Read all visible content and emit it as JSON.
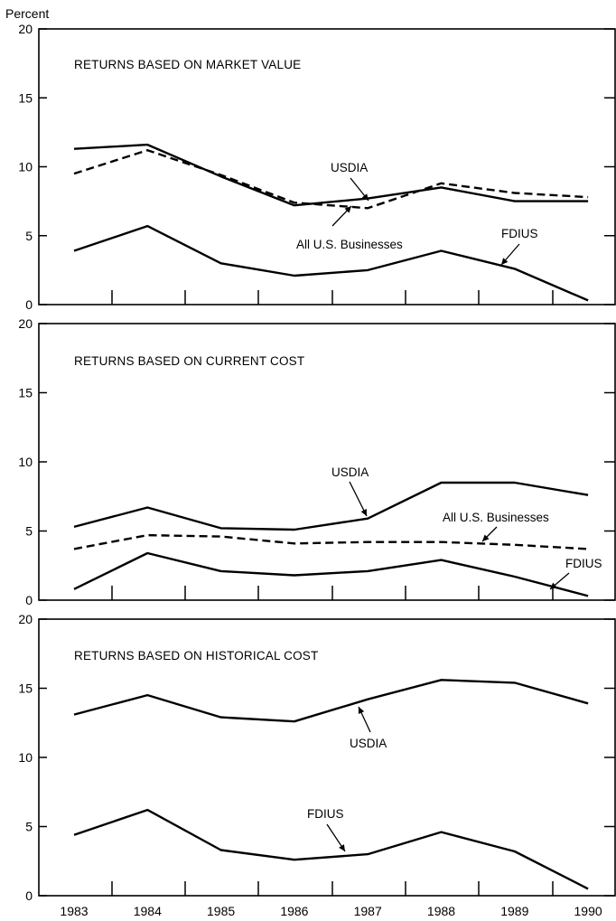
{
  "y_unit_label": "Percent",
  "chart_data": [
    {
      "type": "line",
      "title": "RETURNS BASED ON MARKET VALUE",
      "categories": [
        "1983",
        "1984",
        "1985",
        "1986",
        "1987",
        "1988",
        "1989",
        "1990"
      ],
      "ylim": [
        0,
        20
      ],
      "yticks": [
        0,
        5,
        10,
        15,
        20
      ],
      "grid": false,
      "series": [
        {
          "name": "USDIA",
          "style": "solid",
          "values": [
            11.3,
            11.6,
            9.3,
            7.2,
            7.7,
            8.5,
            7.5,
            7.5
          ]
        },
        {
          "name": "All U.S. Businesses",
          "style": "dashed",
          "values": [
            9.5,
            11.2,
            9.4,
            7.4,
            7.0,
            8.8,
            8.1,
            7.8
          ]
        },
        {
          "name": "FDIUS",
          "style": "solid",
          "values": [
            3.9,
            5.7,
            3.0,
            2.1,
            2.5,
            3.9,
            2.6,
            0.3
          ]
        }
      ]
    },
    {
      "type": "line",
      "title": "RETURNS BASED ON CURRENT COST",
      "categories": [
        "1983",
        "1984",
        "1985",
        "1986",
        "1987",
        "1988",
        "1989",
        "1990"
      ],
      "ylim": [
        0,
        20
      ],
      "yticks": [
        0,
        5,
        10,
        15,
        20
      ],
      "grid": false,
      "series": [
        {
          "name": "USDIA",
          "style": "solid",
          "values": [
            5.3,
            6.7,
            5.2,
            5.1,
            5.9,
            8.5,
            8.5,
            7.6
          ]
        },
        {
          "name": "All U.S. Businesses",
          "style": "dashed",
          "values": [
            3.7,
            4.7,
            4.6,
            4.1,
            4.2,
            4.2,
            4.0,
            3.7
          ]
        },
        {
          "name": "FDIUS",
          "style": "solid",
          "values": [
            0.8,
            3.4,
            2.1,
            1.8,
            2.1,
            2.9,
            1.7,
            0.3
          ]
        }
      ]
    },
    {
      "type": "line",
      "title": "RETURNS BASED ON HISTORICAL COST",
      "categories": [
        "1983",
        "1984",
        "1985",
        "1986",
        "1987",
        "1988",
        "1989",
        "1990"
      ],
      "ylim": [
        0,
        20
      ],
      "yticks": [
        0,
        5,
        10,
        15,
        20
      ],
      "grid": false,
      "series": [
        {
          "name": "USDIA",
          "style": "solid",
          "values": [
            13.1,
            14.5,
            12.9,
            12.6,
            14.2,
            15.6,
            15.4,
            13.9
          ]
        },
        {
          "name": "FDIUS",
          "style": "solid",
          "values": [
            4.4,
            6.2,
            3.3,
            2.6,
            3.0,
            4.6,
            3.2,
            0.5
          ]
        }
      ]
    }
  ]
}
